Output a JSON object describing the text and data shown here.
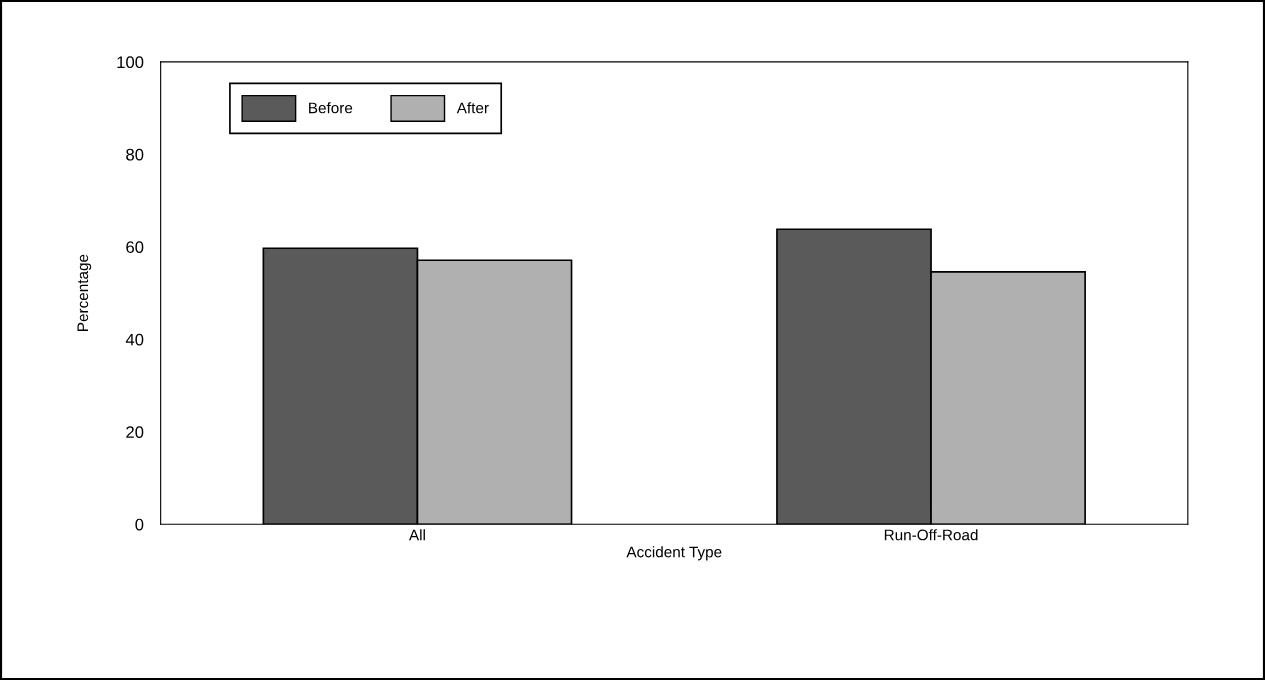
{
  "chart_data": {
    "type": "bar",
    "xlabel": "Accident Type",
    "ylabel": "Percentage",
    "categories": [
      "All",
      "Run-Off-Road"
    ],
    "series": [
      {
        "name": "Before",
        "color": "#5a5a5a",
        "values": [
          59.7,
          63.8
        ]
      },
      {
        "name": "After",
        "color": "#b0b0b0",
        "values": [
          57.1,
          54.6
        ]
      }
    ],
    "ylim": [
      0,
      100
    ],
    "yticks": [
      0,
      20,
      40,
      60,
      80,
      100
    ],
    "grid": false,
    "legend": "top left"
  }
}
